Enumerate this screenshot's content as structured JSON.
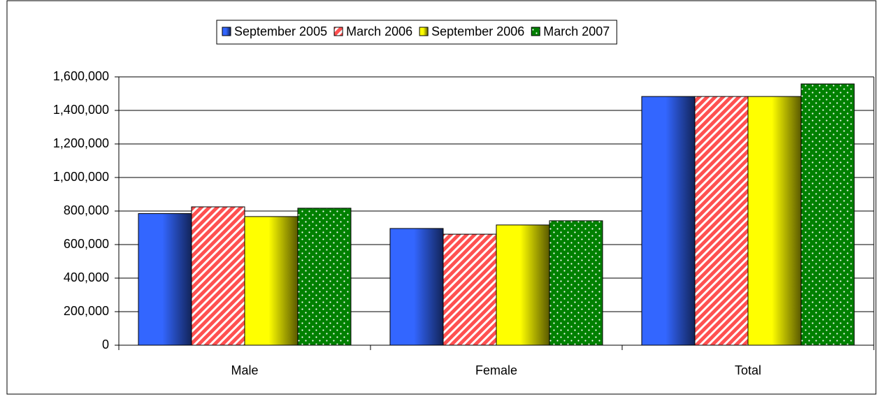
{
  "chart_data": {
    "type": "bar",
    "categories": [
      "Male",
      "Female",
      "Total"
    ],
    "series": [
      {
        "name": "September 2005",
        "color": "#3366ff",
        "pattern": "gradient",
        "values": [
          785000,
          696000,
          1483000
        ]
      },
      {
        "name": "March 2006",
        "color": "#ff5050",
        "pattern": "stripes",
        "values": [
          825000,
          662000,
          1483000
        ]
      },
      {
        "name": "September 2006",
        "color": "#ffff00",
        "pattern": "gradient",
        "values": [
          767000,
          717000,
          1483000
        ]
      },
      {
        "name": "March 2007",
        "color": "#008000",
        "pattern": "dots",
        "values": [
          817000,
          742000,
          1558000
        ]
      }
    ],
    "ylim": [
      0,
      1600000
    ],
    "yticks": [
      0,
      {
        "value": 200000,
        "label": "200,000"
      },
      {
        "value": 400000,
        "label": "400,000"
      },
      {
        "value": 600000,
        "label": "600,000"
      },
      {
        "value": 800000,
        "label": "800,000"
      },
      {
        "value": 1000000,
        "label": "1,000,000"
      },
      {
        "value": 1200000,
        "label": "1,200,000"
      },
      {
        "value": 1400000,
        "label": "1,400,000"
      },
      {
        "value": 1600000,
        "label": "1,600,000"
      }
    ],
    "grid": true,
    "legend": "top"
  }
}
